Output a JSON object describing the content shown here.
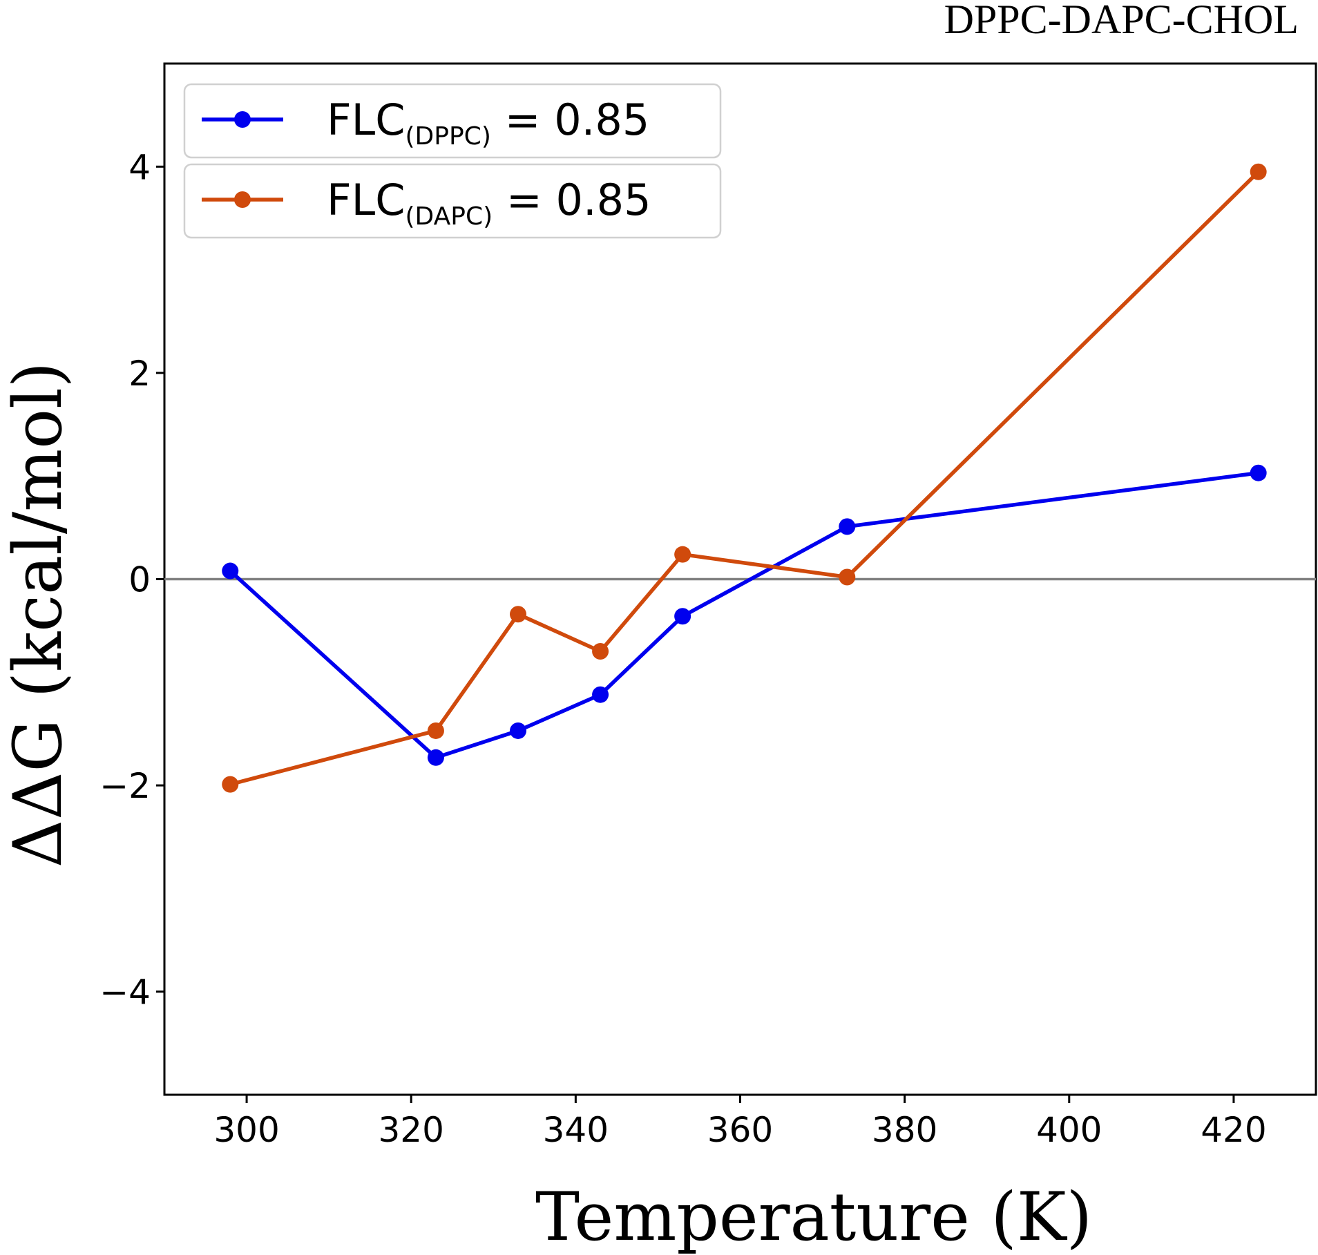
{
  "chart_data": {
    "type": "line",
    "title": "DPPC-DAPC-CHOL",
    "xlabel": "Temperature (K)",
    "ylabel": "ΔΔG  (kcal/mol)",
    "xlim": [
      290,
      430
    ],
    "ylim": [
      -5,
      5
    ],
    "xticks": [
      300,
      320,
      340,
      360,
      380,
      400,
      420
    ],
    "yticks": [
      -4,
      -2,
      0,
      2,
      4
    ],
    "ytick_labels": [
      "−4",
      "−2",
      "0",
      "2",
      "4"
    ],
    "x": [
      298,
      323,
      333,
      343,
      353,
      373,
      423
    ],
    "reference_line": {
      "y": 0,
      "color": "#808080"
    },
    "legend_position": "top-left",
    "series": [
      {
        "legend": {
          "main": "FLC",
          "sub": "(DPPC)",
          "rest": " = 0.85"
        },
        "color": "#0000ee",
        "values": [
          0.08,
          -1.73,
          -1.47,
          -1.12,
          -0.36,
          0.51,
          1.03
        ]
      },
      {
        "legend": {
          "main": "FLC",
          "sub": "(DAPC)",
          "rest": " = 0.85"
        },
        "color": "#d04a0c",
        "values": [
          -1.99,
          -1.47,
          -0.34,
          -0.7,
          0.24,
          0.02,
          3.95
        ]
      }
    ]
  }
}
